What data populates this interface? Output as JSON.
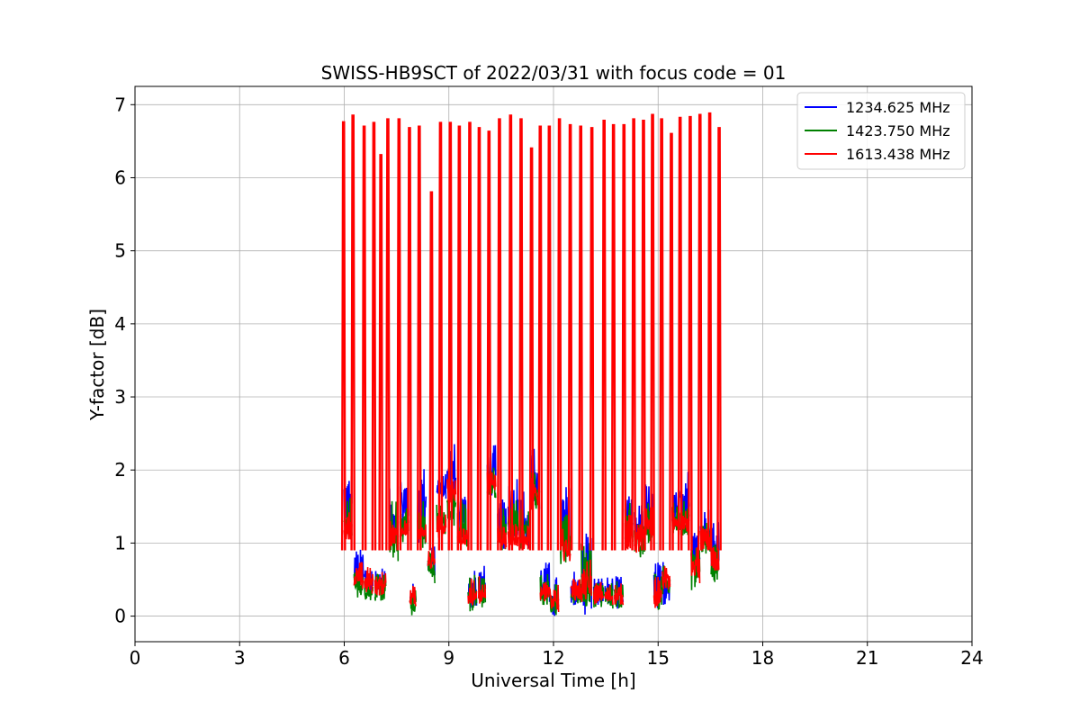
{
  "chart_data": {
    "type": "line",
    "title": "SWISS-HB9SCT of 2022/03/31 with focus code = 01",
    "xlabel": "Universal Time [h]",
    "ylabel": "Y-factor [dB]",
    "xlim": [
      0,
      24
    ],
    "ylim": [
      -0.35,
      7.25
    ],
    "xticks": [
      0,
      3,
      6,
      9,
      12,
      15,
      18,
      21,
      24
    ],
    "yticks": [
      0,
      1,
      2,
      3,
      4,
      5,
      6,
      7
    ],
    "grid": true,
    "legend_position": "top-right",
    "series": [
      {
        "name": "1234.625 MHz",
        "color": "#0000ff",
        "segments": [
          {
            "x0": 6.0,
            "x1": 6.22,
            "lo": 1.05,
            "hi": 2.02
          },
          {
            "x0": 6.28,
            "x1": 6.55,
            "lo": 0.4,
            "hi": 0.92
          },
          {
            "x0": 6.58,
            "x1": 6.83,
            "lo": 0.35,
            "hi": 0.72
          },
          {
            "x0": 6.88,
            "x1": 7.2,
            "lo": 0.3,
            "hi": 0.68
          },
          {
            "x0": 7.3,
            "x1": 7.55,
            "lo": 0.95,
            "hi": 1.75
          },
          {
            "x0": 7.6,
            "x1": 7.85,
            "lo": 1.15,
            "hi": 1.98
          },
          {
            "x0": 7.88,
            "x1": 8.05,
            "lo": 0.12,
            "hi": 0.45
          },
          {
            "x0": 8.1,
            "x1": 8.35,
            "lo": 1.0,
            "hi": 2.08
          },
          {
            "x0": 8.4,
            "x1": 8.6,
            "lo": 0.55,
            "hi": 1.05
          },
          {
            "x0": 8.65,
            "x1": 8.92,
            "lo": 1.6,
            "hi": 1.95
          },
          {
            "x0": 8.95,
            "x1": 9.2,
            "lo": 1.55,
            "hi": 2.42
          },
          {
            "x0": 9.25,
            "x1": 9.52,
            "lo": 0.95,
            "hi": 1.75
          },
          {
            "x0": 9.55,
            "x1": 9.8,
            "lo": 0.1,
            "hi": 0.72
          },
          {
            "x0": 9.85,
            "x1": 10.05,
            "lo": 0.15,
            "hi": 0.7
          },
          {
            "x0": 10.1,
            "x1": 10.35,
            "lo": 1.65,
            "hi": 2.35
          },
          {
            "x0": 10.4,
            "x1": 10.65,
            "lo": 0.9,
            "hi": 1.6
          },
          {
            "x0": 10.7,
            "x1": 11.0,
            "lo": 1.05,
            "hi": 2.0
          },
          {
            "x0": 11.05,
            "x1": 11.3,
            "lo": 0.9,
            "hi": 1.85
          },
          {
            "x0": 11.35,
            "x1": 11.6,
            "lo": 1.45,
            "hi": 2.35
          },
          {
            "x0": 11.62,
            "x1": 11.88,
            "lo": 0.15,
            "hi": 0.75
          },
          {
            "x0": 11.9,
            "x1": 12.15,
            "lo": 0.0,
            "hi": 0.55
          },
          {
            "x0": 12.2,
            "x1": 12.48,
            "lo": 0.8,
            "hi": 1.8
          },
          {
            "x0": 12.5,
            "x1": 12.78,
            "lo": 0.15,
            "hi": 0.68
          },
          {
            "x0": 12.8,
            "x1": 13.1,
            "lo": 0.0,
            "hi": 1.3
          },
          {
            "x0": 13.15,
            "x1": 13.45,
            "lo": 0.15,
            "hi": 0.55
          },
          {
            "x0": 13.48,
            "x1": 13.7,
            "lo": 0.15,
            "hi": 0.55
          },
          {
            "x0": 13.75,
            "x1": 14.0,
            "lo": 0.1,
            "hi": 0.55
          },
          {
            "x0": 14.05,
            "x1": 14.28,
            "lo": 0.95,
            "hi": 1.65
          },
          {
            "x0": 14.32,
            "x1": 14.6,
            "lo": 0.95,
            "hi": 1.55
          },
          {
            "x0": 14.62,
            "x1": 14.85,
            "lo": 1.1,
            "hi": 1.85
          },
          {
            "x0": 14.88,
            "x1": 15.1,
            "lo": 0.1,
            "hi": 0.75
          },
          {
            "x0": 15.12,
            "x1": 15.35,
            "lo": 0.15,
            "hi": 0.8
          },
          {
            "x0": 15.4,
            "x1": 15.62,
            "lo": 1.2,
            "hi": 1.95
          },
          {
            "x0": 15.65,
            "x1": 15.9,
            "lo": 1.2,
            "hi": 2.05
          },
          {
            "x0": 15.95,
            "x1": 16.2,
            "lo": 0.75,
            "hi": 1.2
          },
          {
            "x0": 16.22,
            "x1": 16.5,
            "lo": 0.9,
            "hi": 1.5
          },
          {
            "x0": 16.52,
            "x1": 16.75,
            "lo": 0.6,
            "hi": 1.3
          }
        ]
      },
      {
        "name": "1423.750 MHz",
        "color": "#008000",
        "segments": [
          {
            "x0": 6.0,
            "x1": 6.22,
            "lo": 1.05,
            "hi": 1.65
          },
          {
            "x0": 6.28,
            "x1": 6.55,
            "lo": 0.25,
            "hi": 0.65
          },
          {
            "x0": 6.58,
            "x1": 6.83,
            "lo": 0.2,
            "hi": 0.6
          },
          {
            "x0": 6.88,
            "x1": 7.2,
            "lo": 0.2,
            "hi": 0.58
          },
          {
            "x0": 7.3,
            "x1": 7.55,
            "lo": 0.7,
            "hi": 1.6
          },
          {
            "x0": 7.6,
            "x1": 7.85,
            "lo": 1.0,
            "hi": 1.62
          },
          {
            "x0": 7.88,
            "x1": 8.05,
            "lo": 0.0,
            "hi": 0.38
          },
          {
            "x0": 8.1,
            "x1": 8.35,
            "lo": 0.9,
            "hi": 1.62
          },
          {
            "x0": 8.4,
            "x1": 8.6,
            "lo": 0.45,
            "hi": 0.95
          },
          {
            "x0": 8.65,
            "x1": 8.92,
            "lo": 1.1,
            "hi": 1.55
          },
          {
            "x0": 8.95,
            "x1": 9.2,
            "lo": 1.2,
            "hi": 1.95
          },
          {
            "x0": 9.25,
            "x1": 9.52,
            "lo": 0.9,
            "hi": 1.6
          },
          {
            "x0": 9.55,
            "x1": 9.8,
            "lo": 0.05,
            "hi": 0.58
          },
          {
            "x0": 9.85,
            "x1": 10.05,
            "lo": 0.1,
            "hi": 0.55
          },
          {
            "x0": 10.1,
            "x1": 10.35,
            "lo": 1.6,
            "hi": 2.05
          },
          {
            "x0": 10.4,
            "x1": 10.65,
            "lo": 0.9,
            "hi": 1.5
          },
          {
            "x0": 10.7,
            "x1": 11.0,
            "lo": 1.0,
            "hi": 1.65
          },
          {
            "x0": 11.05,
            "x1": 11.3,
            "lo": 0.9,
            "hi": 1.5
          },
          {
            "x0": 11.35,
            "x1": 11.6,
            "lo": 1.45,
            "hi": 2.05
          },
          {
            "x0": 11.62,
            "x1": 11.88,
            "lo": 0.15,
            "hi": 0.6
          },
          {
            "x0": 11.9,
            "x1": 12.15,
            "lo": 0.0,
            "hi": 0.5
          },
          {
            "x0": 12.2,
            "x1": 12.48,
            "lo": 0.7,
            "hi": 1.4
          },
          {
            "x0": 12.5,
            "x1": 12.78,
            "lo": 0.15,
            "hi": 0.55
          },
          {
            "x0": 12.8,
            "x1": 13.1,
            "lo": 0.1,
            "hi": 1.0
          },
          {
            "x0": 13.15,
            "x1": 13.45,
            "lo": 0.12,
            "hi": 0.5
          },
          {
            "x0": 13.48,
            "x1": 13.7,
            "lo": 0.1,
            "hi": 0.45
          },
          {
            "x0": 13.75,
            "x1": 14.0,
            "lo": 0.05,
            "hi": 0.5
          },
          {
            "x0": 14.05,
            "x1": 14.28,
            "lo": 0.9,
            "hi": 1.55
          },
          {
            "x0": 14.32,
            "x1": 14.6,
            "lo": 0.8,
            "hi": 1.35
          },
          {
            "x0": 14.62,
            "x1": 14.85,
            "lo": 1.0,
            "hi": 1.55
          },
          {
            "x0": 14.88,
            "x1": 15.1,
            "lo": 0.05,
            "hi": 0.6
          },
          {
            "x0": 15.12,
            "x1": 15.35,
            "lo": 0.3,
            "hi": 0.7
          },
          {
            "x0": 15.4,
            "x1": 15.62,
            "lo": 1.1,
            "hi": 1.6
          },
          {
            "x0": 15.65,
            "x1": 15.9,
            "lo": 1.1,
            "hi": 1.6
          },
          {
            "x0": 15.95,
            "x1": 16.2,
            "lo": 0.35,
            "hi": 1.0
          },
          {
            "x0": 16.22,
            "x1": 16.5,
            "lo": 0.85,
            "hi": 1.3
          },
          {
            "x0": 16.52,
            "x1": 16.75,
            "lo": 0.45,
            "hi": 1.05
          }
        ]
      },
      {
        "name": "1613.438 MHz",
        "color": "#ff0000",
        "peaks": [
          {
            "x": 5.98,
            "y": 6.76
          },
          {
            "x": 6.25,
            "y": 6.85
          },
          {
            "x": 6.57,
            "y": 6.7
          },
          {
            "x": 6.85,
            "y": 6.75
          },
          {
            "x": 7.05,
            "y": 6.31
          },
          {
            "x": 7.25,
            "y": 6.8
          },
          {
            "x": 7.57,
            "y": 6.8
          },
          {
            "x": 7.87,
            "y": 6.68
          },
          {
            "x": 8.15,
            "y": 6.7
          },
          {
            "x": 8.5,
            "y": 5.8
          },
          {
            "x": 8.76,
            "y": 6.75
          },
          {
            "x": 9.04,
            "y": 6.75
          },
          {
            "x": 9.3,
            "y": 6.7
          },
          {
            "x": 9.6,
            "y": 6.75
          },
          {
            "x": 9.87,
            "y": 6.68
          },
          {
            "x": 10.15,
            "y": 6.63
          },
          {
            "x": 10.45,
            "y": 6.8
          },
          {
            "x": 10.77,
            "y": 6.85
          },
          {
            "x": 11.07,
            "y": 6.8
          },
          {
            "x": 11.37,
            "y": 6.4
          },
          {
            "x": 11.62,
            "y": 6.7
          },
          {
            "x": 11.88,
            "y": 6.7
          },
          {
            "x": 12.17,
            "y": 6.8
          },
          {
            "x": 12.48,
            "y": 6.72
          },
          {
            "x": 12.78,
            "y": 6.7
          },
          {
            "x": 13.1,
            "y": 6.68
          },
          {
            "x": 13.45,
            "y": 6.78
          },
          {
            "x": 13.72,
            "y": 6.72
          },
          {
            "x": 14.02,
            "y": 6.72
          },
          {
            "x": 14.3,
            "y": 6.8
          },
          {
            "x": 14.58,
            "y": 6.78
          },
          {
            "x": 14.84,
            "y": 6.86
          },
          {
            "x": 15.1,
            "y": 6.8
          },
          {
            "x": 15.38,
            "y": 6.6
          },
          {
            "x": 15.63,
            "y": 6.82
          },
          {
            "x": 15.92,
            "y": 6.83
          },
          {
            "x": 16.2,
            "y": 6.86
          },
          {
            "x": 16.48,
            "y": 6.88
          },
          {
            "x": 16.75,
            "y": 6.68
          }
        ],
        "segments": [
          {
            "x0": 6.0,
            "x1": 6.22,
            "lo": 1.05,
            "hi": 1.45
          },
          {
            "x0": 6.28,
            "x1": 6.55,
            "lo": 0.35,
            "hi": 0.75
          },
          {
            "x0": 6.58,
            "x1": 6.83,
            "lo": 0.3,
            "hi": 0.68
          },
          {
            "x0": 6.88,
            "x1": 7.2,
            "lo": 0.28,
            "hi": 0.62
          },
          {
            "x0": 7.3,
            "x1": 7.55,
            "lo": 0.95,
            "hi": 1.4
          },
          {
            "x0": 7.6,
            "x1": 7.85,
            "lo": 1.05,
            "hi": 1.45
          },
          {
            "x0": 7.88,
            "x1": 8.05,
            "lo": 0.12,
            "hi": 0.42
          },
          {
            "x0": 8.1,
            "x1": 8.35,
            "lo": 1.0,
            "hi": 1.3
          },
          {
            "x0": 8.4,
            "x1": 8.6,
            "lo": 0.6,
            "hi": 0.95
          },
          {
            "x0": 8.65,
            "x1": 8.92,
            "lo": 1.05,
            "hi": 1.4
          },
          {
            "x0": 8.95,
            "x1": 9.2,
            "lo": 1.55,
            "hi": 1.95
          },
          {
            "x0": 9.25,
            "x1": 9.52,
            "lo": 0.95,
            "hi": 1.2
          },
          {
            "x0": 9.55,
            "x1": 9.8,
            "lo": 0.1,
            "hi": 0.55
          },
          {
            "x0": 9.85,
            "x1": 10.05,
            "lo": 0.15,
            "hi": 0.55
          },
          {
            "x0": 10.1,
            "x1": 10.35,
            "lo": 1.65,
            "hi": 2.0
          },
          {
            "x0": 10.4,
            "x1": 10.65,
            "lo": 0.9,
            "hi": 1.3
          },
          {
            "x0": 10.7,
            "x1": 11.0,
            "lo": 0.95,
            "hi": 1.3
          },
          {
            "x0": 11.05,
            "x1": 11.3,
            "lo": 0.9,
            "hi": 1.25
          },
          {
            "x0": 11.35,
            "x1": 11.6,
            "lo": 1.45,
            "hi": 1.9
          },
          {
            "x0": 11.62,
            "x1": 11.88,
            "lo": 0.2,
            "hi": 0.6
          },
          {
            "x0": 11.9,
            "x1": 12.15,
            "lo": 0.0,
            "hi": 0.45
          },
          {
            "x0": 12.2,
            "x1": 12.48,
            "lo": 0.75,
            "hi": 1.2
          },
          {
            "x0": 12.5,
            "x1": 12.78,
            "lo": 0.2,
            "hi": 0.55
          },
          {
            "x0": 12.8,
            "x1": 13.1,
            "lo": 0.15,
            "hi": 0.8
          },
          {
            "x0": 13.15,
            "x1": 13.45,
            "lo": 0.15,
            "hi": 0.48
          },
          {
            "x0": 13.48,
            "x1": 13.7,
            "lo": 0.15,
            "hi": 0.45
          },
          {
            "x0": 13.75,
            "x1": 14.0,
            "lo": 0.15,
            "hi": 0.45
          },
          {
            "x0": 14.05,
            "x1": 14.28,
            "lo": 0.9,
            "hi": 1.4
          },
          {
            "x0": 14.32,
            "x1": 14.6,
            "lo": 0.85,
            "hi": 1.3
          },
          {
            "x0": 14.62,
            "x1": 14.85,
            "lo": 1.1,
            "hi": 1.5
          },
          {
            "x0": 14.88,
            "x1": 15.1,
            "lo": 0.1,
            "hi": 0.55
          },
          {
            "x0": 15.12,
            "x1": 15.35,
            "lo": 0.35,
            "hi": 0.7
          },
          {
            "x0": 15.4,
            "x1": 15.62,
            "lo": 1.1,
            "hi": 1.5
          },
          {
            "x0": 15.65,
            "x1": 15.9,
            "lo": 1.1,
            "hi": 1.5
          },
          {
            "x0": 15.95,
            "x1": 16.2,
            "lo": 0.45,
            "hi": 0.95
          },
          {
            "x0": 16.22,
            "x1": 16.5,
            "lo": 0.85,
            "hi": 1.2
          },
          {
            "x0": 16.52,
            "x1": 16.75,
            "lo": 0.6,
            "hi": 0.95
          }
        ]
      }
    ]
  }
}
